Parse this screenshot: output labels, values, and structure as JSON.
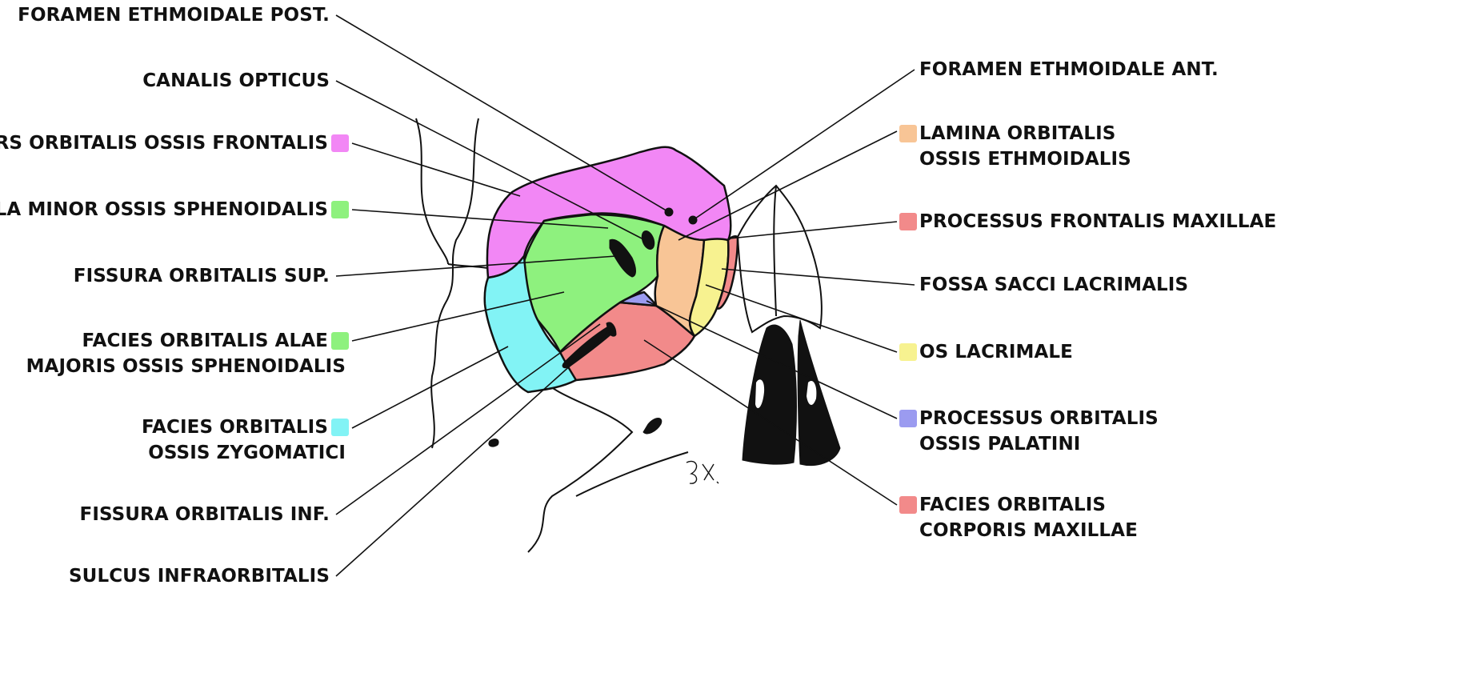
{
  "labels_left": [
    {
      "id": "foramen-ethmoidale-post",
      "lines": [
        "FORAMEN ETHMOIDALE POST."
      ],
      "swatch": null
    },
    {
      "id": "canalis-opticus",
      "lines": [
        "CANALIS OPTICUS"
      ],
      "swatch": null
    },
    {
      "id": "pars-orbitalis-ossis-frontalis",
      "lines": [
        "PARS ORBITALIS OSSIS FRONTALIS"
      ],
      "swatch": "#f287f5"
    },
    {
      "id": "ala-minor-ossis-sphenoidalis",
      "lines": [
        "ALA MINOR OSSIS SPHENOIDALIS"
      ],
      "swatch": "#8ef17e"
    },
    {
      "id": "fissura-orbitalis-sup",
      "lines": [
        "FISSURA ORBITALIS SUP."
      ],
      "swatch": null
    },
    {
      "id": "facies-orbitalis-alae-majoris",
      "lines": [
        "FACIES ORBITALIS ALAE",
        "MAJORIS OSSIS SPHENOIDALIS"
      ],
      "swatch": "#8ef17e"
    },
    {
      "id": "facies-orbitalis-ossis-zygomatici",
      "lines": [
        "FACIES ORBITALIS",
        "OSSIS ZYGOMATICI"
      ],
      "swatch": "#82f3f5"
    },
    {
      "id": "fissura-orbitalis-inf",
      "lines": [
        "FISSURA ORBITALIS INF."
      ],
      "swatch": null
    },
    {
      "id": "sulcus-infraorbitalis",
      "lines": [
        "SULCUS INFRAORBITALIS"
      ],
      "swatch": null
    }
  ],
  "labels_right": [
    {
      "id": "foramen-ethmoidale-ant",
      "lines": [
        "FORAMEN ETHMOIDALE ANT."
      ],
      "swatch": null
    },
    {
      "id": "lamina-orbitalis-ossis-ethmoidalis",
      "lines": [
        "LAMINA ORBITALIS",
        "OSSIS ETHMOIDALIS"
      ],
      "swatch": "#f8c596"
    },
    {
      "id": "processus-frontalis-maxillae",
      "lines": [
        "PROCESSUS FRONTALIS MAXILLAE"
      ],
      "swatch": "#f28a8a"
    },
    {
      "id": "fossa-sacci-lacrimalis",
      "lines": [
        "FOSSA SACCI LACRIMALIS"
      ],
      "swatch": null
    },
    {
      "id": "os-lacrimale",
      "lines": [
        "OS LACRIMALE"
      ],
      "swatch": "#f7f290"
    },
    {
      "id": "processus-orbitalis-ossis-palatini",
      "lines": [
        "PROCESSUS ORBITALIS",
        "OSSIS PALATINI"
      ],
      "swatch": "#9b9bf0"
    },
    {
      "id": "facies-orbitalis-corporis-maxillae",
      "lines": [
        "FACIES ORBITALIS",
        "CORPORIS MAXILLAE"
      ],
      "swatch": "#f28a8a"
    }
  ],
  "colors": {
    "frontal": "#f287f5",
    "sphenoid": "#8ef17e",
    "zygomatic": "#82f3f5",
    "ethmoid": "#f8c596",
    "maxilla": "#f28a8a",
    "lacrimal": "#f7f290",
    "palatine": "#9b9bf0",
    "outline": "#111111"
  }
}
